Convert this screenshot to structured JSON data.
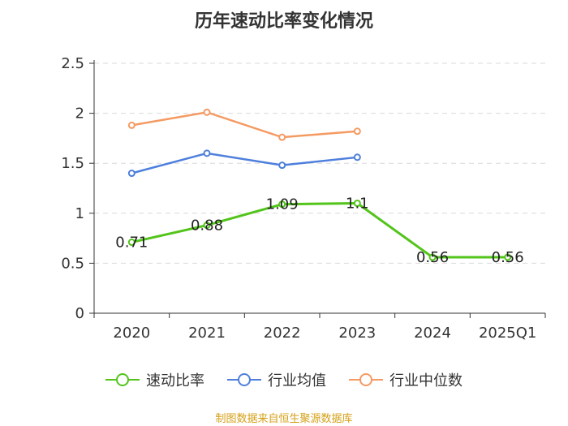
{
  "title": "历年速动比率变化情况",
  "source": "制图数据来自恒生聚源数据库",
  "chart_data": {
    "type": "line",
    "categories": [
      "2020",
      "2021",
      "2022",
      "2023",
      "2024",
      "2025Q1"
    ],
    "ylim": [
      0,
      2.5
    ],
    "yticks": [
      "0",
      "0.5",
      "1",
      "1.5",
      "2",
      "2.5"
    ],
    "grid": true,
    "legend_position": "bottom",
    "series": [
      {
        "name": "速动比率",
        "color": "#52c41a",
        "values": [
          0.71,
          0.88,
          1.09,
          1.1,
          0.56,
          0.56
        ],
        "labels": [
          "0.71",
          "0.88",
          "1.09",
          "1.1",
          "0.56",
          "0.56"
        ]
      },
      {
        "name": "行业均值",
        "color": "#4e7fdc",
        "values": [
          1.4,
          1.6,
          1.48,
          1.56,
          null,
          null
        ]
      },
      {
        "name": "行业中位数",
        "color": "#f59a62",
        "values": [
          1.88,
          2.01,
          1.76,
          1.82,
          null,
          null
        ]
      }
    ]
  }
}
